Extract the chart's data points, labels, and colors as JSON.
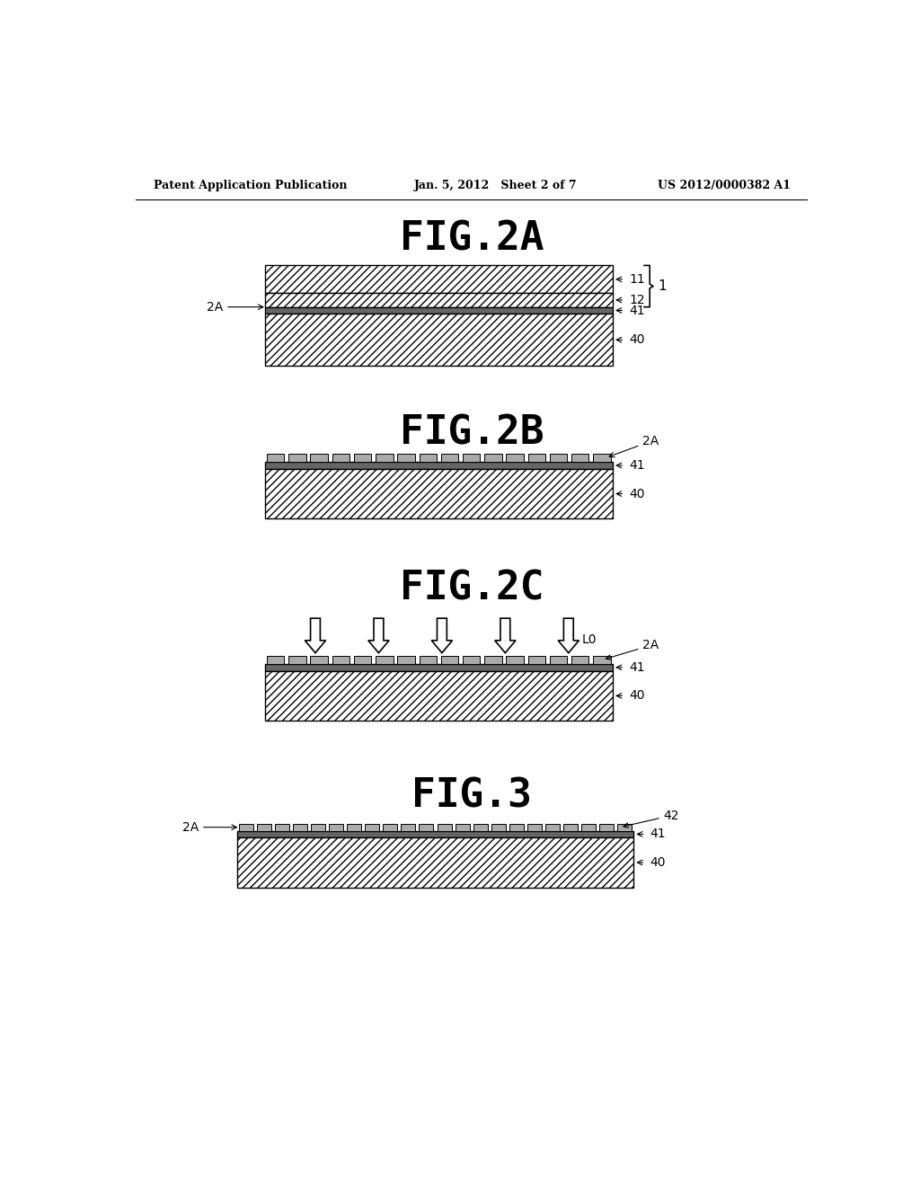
{
  "bg_color": "#ffffff",
  "header_left": "Patent Application Publication",
  "header_mid": "Jan. 5, 2012   Sheet 2 of 7",
  "header_right": "US 2012/0000382 A1",
  "fig2a_title": "FIG.2A",
  "fig2b_title": "FIG.2B",
  "fig2c_title": "FIG.2C",
  "fig3_title": "FIG.3",
  "hatch_color": "#000000",
  "line_color": "#000000",
  "fill_color": "#ffffff"
}
